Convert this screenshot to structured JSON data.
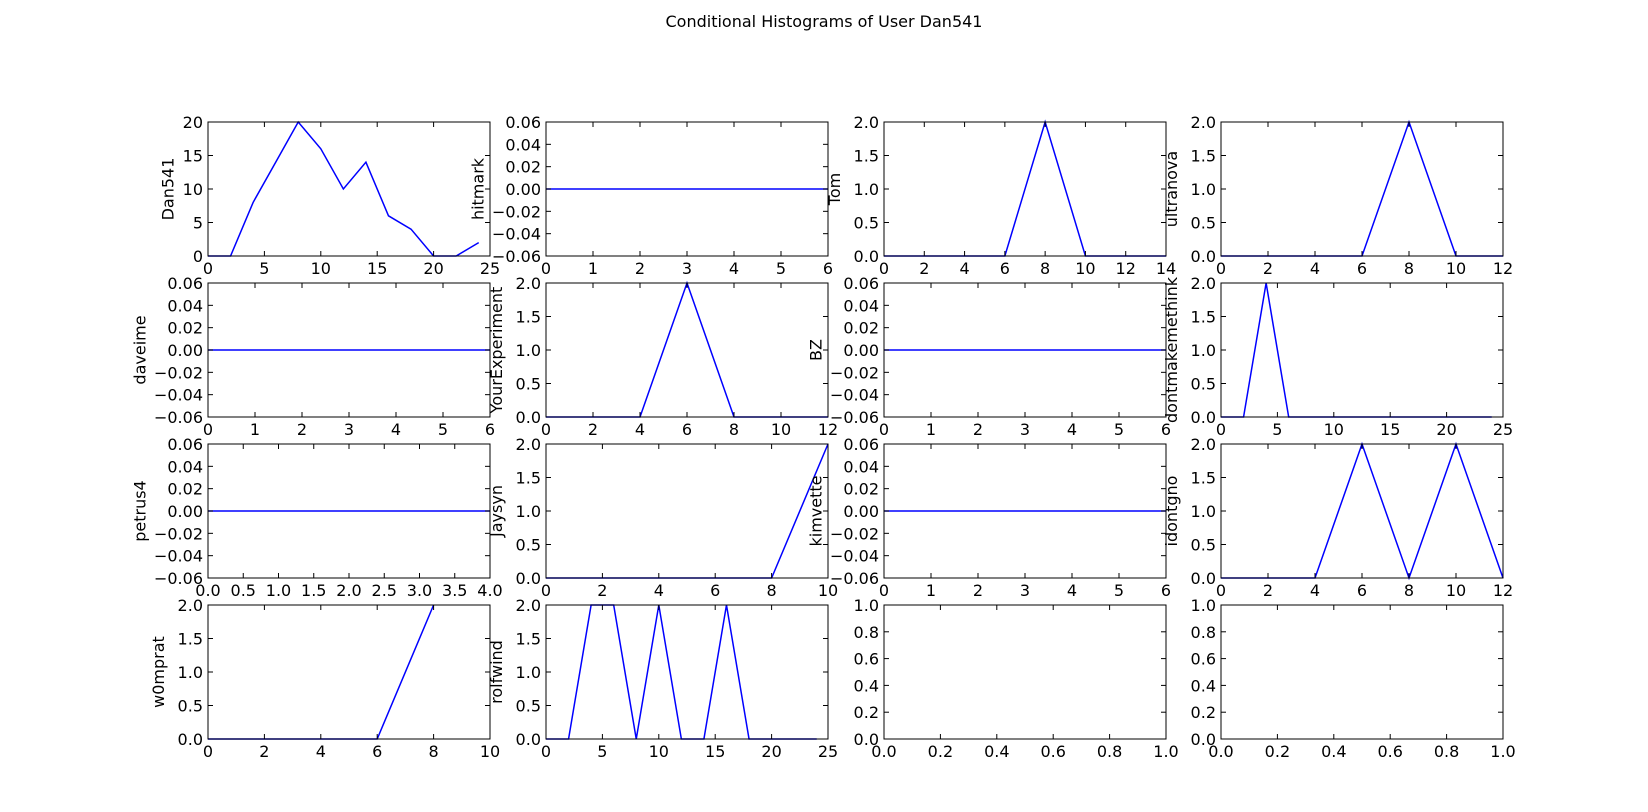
{
  "figure": {
    "title": "Conditional Histograms of User Dan541"
  },
  "style": {
    "line_color": "#0000ff",
    "axes_color": "#000000",
    "background": "#ffffff"
  },
  "chart_data": [
    {
      "type": "line",
      "ylabel": "Dan541",
      "xlim": [
        0,
        25
      ],
      "ylim": [
        0,
        20
      ],
      "xticks": [
        "0",
        "5",
        "10",
        "15",
        "20",
        "25"
      ],
      "yticks": [
        "0",
        "5",
        "10",
        "15",
        "20"
      ],
      "x": [
        0,
        2,
        4,
        6,
        8,
        10,
        12,
        14,
        16,
        18,
        20,
        22,
        24
      ],
      "y": [
        0,
        0,
        8,
        14,
        20,
        16,
        10,
        14,
        6,
        4,
        0,
        0,
        2
      ]
    },
    {
      "type": "line",
      "ylabel": "hitmark",
      "xlim": [
        0,
        6
      ],
      "ylim": [
        -0.06,
        0.06
      ],
      "xticks": [
        "0",
        "1",
        "2",
        "3",
        "4",
        "5",
        "6"
      ],
      "yticks": [
        "−0.06",
        "−0.04",
        "−0.02",
        "0.00",
        "0.02",
        "0.04",
        "0.06"
      ],
      "x": [
        0,
        6
      ],
      "y": [
        0,
        0
      ]
    },
    {
      "type": "line",
      "ylabel": "Tom",
      "xlim": [
        0,
        14
      ],
      "ylim": [
        0,
        2
      ],
      "xticks": [
        "0",
        "2",
        "4",
        "6",
        "8",
        "10",
        "12",
        "14"
      ],
      "yticks": [
        "0.0",
        "0.5",
        "1.0",
        "1.5",
        "2.0"
      ],
      "x": [
        0,
        2,
        4,
        6,
        8,
        10,
        12,
        14
      ],
      "y": [
        0,
        0,
        0,
        0,
        2,
        0,
        0,
        0
      ]
    },
    {
      "type": "line",
      "ylabel": "ultranova",
      "xlim": [
        0,
        12
      ],
      "ylim": [
        0,
        2
      ],
      "xticks": [
        "0",
        "2",
        "4",
        "6",
        "8",
        "10",
        "12"
      ],
      "yticks": [
        "0.0",
        "0.5",
        "1.0",
        "1.5",
        "2.0"
      ],
      "x": [
        0,
        2,
        4,
        6,
        8,
        10,
        12
      ],
      "y": [
        0,
        0,
        0,
        0,
        2,
        0,
        0
      ]
    },
    {
      "type": "line",
      "ylabel": "daveime",
      "xlim": [
        0,
        6
      ],
      "ylim": [
        -0.06,
        0.06
      ],
      "xticks": [
        "0",
        "1",
        "2",
        "3",
        "4",
        "5",
        "6"
      ],
      "yticks": [
        "−0.06",
        "−0.04",
        "−0.02",
        "0.00",
        "0.02",
        "0.04",
        "0.06"
      ],
      "x": [
        0,
        6
      ],
      "y": [
        0,
        0
      ]
    },
    {
      "type": "line",
      "ylabel": "YourExperiment",
      "xlim": [
        0,
        12
      ],
      "ylim": [
        0,
        2
      ],
      "xticks": [
        "0",
        "2",
        "4",
        "6",
        "8",
        "10",
        "12"
      ],
      "yticks": [
        "0.0",
        "0.5",
        "1.0",
        "1.5",
        "2.0"
      ],
      "x": [
        0,
        2,
        4,
        6,
        8,
        10,
        12
      ],
      "y": [
        0,
        0,
        0,
        2,
        0,
        0,
        0
      ]
    },
    {
      "type": "line",
      "ylabel": "BZ",
      "xlim": [
        0,
        6
      ],
      "ylim": [
        -0.06,
        0.06
      ],
      "xticks": [
        "0",
        "1",
        "2",
        "3",
        "4",
        "5",
        "6"
      ],
      "yticks": [
        "−0.06",
        "−0.04",
        "−0.02",
        "0.00",
        "0.02",
        "0.04",
        "0.06"
      ],
      "x": [
        0,
        6
      ],
      "y": [
        0,
        0
      ]
    },
    {
      "type": "line",
      "ylabel": "dontmakemethink",
      "xlim": [
        0,
        25
      ],
      "ylim": [
        0,
        2
      ],
      "xticks": [
        "0",
        "5",
        "10",
        "15",
        "20",
        "25"
      ],
      "yticks": [
        "0.0",
        "0.5",
        "1.0",
        "1.5",
        "2.0"
      ],
      "x": [
        0,
        2,
        4,
        6,
        8,
        10,
        12,
        14,
        16,
        18,
        20,
        22,
        24
      ],
      "y": [
        0,
        0,
        2,
        0,
        0,
        0,
        0,
        0,
        0,
        0,
        0,
        0,
        0
      ]
    },
    {
      "type": "line",
      "ylabel": "petrus4",
      "xlim": [
        0,
        4
      ],
      "ylim": [
        -0.06,
        0.06
      ],
      "xticks": [
        "0.0",
        "0.5",
        "1.0",
        "1.5",
        "2.0",
        "2.5",
        "3.0",
        "3.5",
        "4.0"
      ],
      "yticks": [
        "−0.06",
        "−0.04",
        "−0.02",
        "0.00",
        "0.02",
        "0.04",
        "0.06"
      ],
      "x": [
        0,
        4
      ],
      "y": [
        0,
        0
      ]
    },
    {
      "type": "line",
      "ylabel": "Jaysyn",
      "xlim": [
        0,
        10
      ],
      "ylim": [
        0,
        2
      ],
      "xticks": [
        "0",
        "2",
        "4",
        "6",
        "8",
        "10"
      ],
      "yticks": [
        "0.0",
        "0.5",
        "1.0",
        "1.5",
        "2.0"
      ],
      "x": [
        0,
        2,
        4,
        6,
        8,
        10
      ],
      "y": [
        0,
        0,
        0,
        0,
        0,
        2
      ]
    },
    {
      "type": "line",
      "ylabel": "kimvette",
      "xlim": [
        0,
        6
      ],
      "ylim": [
        -0.06,
        0.06
      ],
      "xticks": [
        "0",
        "1",
        "2",
        "3",
        "4",
        "5",
        "6"
      ],
      "yticks": [
        "−0.06",
        "−0.04",
        "−0.02",
        "0.00",
        "0.02",
        "0.04",
        "0.06"
      ],
      "x": [
        0,
        6
      ],
      "y": [
        0,
        0
      ]
    },
    {
      "type": "line",
      "ylabel": "idontgno",
      "xlim": [
        0,
        12
      ],
      "ylim": [
        0,
        2
      ],
      "xticks": [
        "0",
        "2",
        "4",
        "6",
        "8",
        "10",
        "12"
      ],
      "yticks": [
        "0.0",
        "0.5",
        "1.0",
        "1.5",
        "2.0"
      ],
      "x": [
        0,
        2,
        4,
        6,
        8,
        10,
        12
      ],
      "y": [
        0,
        0,
        0,
        2,
        0,
        2,
        0
      ]
    },
    {
      "type": "line",
      "ylabel": "w0mprat",
      "xlim": [
        0,
        10
      ],
      "ylim": [
        0,
        2
      ],
      "xticks": [
        "0",
        "2",
        "4",
        "6",
        "8",
        "10"
      ],
      "yticks": [
        "0.0",
        "0.5",
        "1.0",
        "1.5",
        "2.0"
      ],
      "x": [
        0,
        2,
        4,
        6,
        8
      ],
      "y": [
        0,
        0,
        0,
        0,
        2
      ]
    },
    {
      "type": "line",
      "ylabel": "rolfwind",
      "xlim": [
        0,
        25
      ],
      "ylim": [
        0,
        2
      ],
      "xticks": [
        "0",
        "5",
        "10",
        "15",
        "20",
        "25"
      ],
      "yticks": [
        "0.0",
        "0.5",
        "1.0",
        "1.5",
        "2.0"
      ],
      "x": [
        0,
        2,
        4,
        6,
        8,
        10,
        12,
        14,
        16,
        18,
        20,
        22,
        24
      ],
      "y": [
        0,
        0,
        2,
        2,
        0,
        2,
        0,
        0,
        2,
        0,
        0,
        0,
        0
      ]
    },
    {
      "type": "line",
      "ylabel": "",
      "xlim": [
        0,
        1
      ],
      "ylim": [
        0,
        1
      ],
      "xticks": [
        "0.0",
        "0.2",
        "0.4",
        "0.6",
        "0.8",
        "1.0"
      ],
      "yticks": [
        "0.0",
        "0.2",
        "0.4",
        "0.6",
        "0.8",
        "1.0"
      ],
      "x": [],
      "y": []
    },
    {
      "type": "line",
      "ylabel": "",
      "xlim": [
        0,
        1
      ],
      "ylim": [
        0,
        1
      ],
      "xticks": [
        "0.0",
        "0.2",
        "0.4",
        "0.6",
        "0.8",
        "1.0"
      ],
      "yticks": [
        "0.0",
        "0.2",
        "0.4",
        "0.6",
        "0.8",
        "1.0"
      ],
      "x": [],
      "y": []
    }
  ]
}
